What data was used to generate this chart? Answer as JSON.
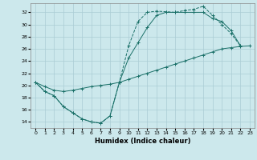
{
  "xlabel": "Humidex (Indice chaleur)",
  "bg_color": "#cce8ec",
  "grid_color": "#aaccd4",
  "line_color": "#1a7068",
  "xlim": [
    -0.5,
    23.5
  ],
  "ylim": [
    13.0,
    33.5
  ],
  "yticks": [
    14,
    16,
    18,
    20,
    22,
    24,
    26,
    28,
    30,
    32
  ],
  "xticks": [
    0,
    1,
    2,
    3,
    4,
    5,
    6,
    7,
    8,
    9,
    10,
    11,
    12,
    13,
    14,
    15,
    16,
    17,
    18,
    19,
    20,
    21,
    22,
    23
  ],
  "line1_x": [
    0,
    1,
    2,
    3,
    4,
    5,
    6,
    7,
    8,
    9,
    10,
    11,
    12,
    13,
    14,
    15,
    16,
    17,
    18,
    19,
    20,
    21,
    22
  ],
  "line1_y": [
    20.5,
    19.0,
    18.3,
    16.5,
    15.5,
    14.5,
    14.0,
    13.8,
    15.0,
    20.5,
    26.5,
    30.5,
    32.0,
    32.2,
    32.1,
    32.0,
    32.3,
    32.5,
    33.0,
    31.5,
    30.0,
    28.5,
    26.5
  ],
  "line2_x": [
    0,
    1,
    2,
    3,
    4,
    5,
    6,
    7,
    8,
    9,
    10,
    11,
    12,
    13,
    14,
    15,
    16,
    17,
    18,
    19,
    20,
    21,
    22
  ],
  "line2_y": [
    20.5,
    19.0,
    18.3,
    16.5,
    15.5,
    14.5,
    14.0,
    13.8,
    15.0,
    20.5,
    24.5,
    27.0,
    29.5,
    31.5,
    32.0,
    32.0,
    32.0,
    32.0,
    32.0,
    31.0,
    30.5,
    29.0,
    26.5
  ],
  "line3_x": [
    0,
    1,
    2,
    3,
    4,
    5,
    6,
    7,
    8,
    9,
    10,
    11,
    12,
    13,
    14,
    15,
    16,
    17,
    18,
    19,
    20,
    21,
    22,
    23
  ],
  "line3_y": [
    20.5,
    19.8,
    19.2,
    19.0,
    19.2,
    19.5,
    19.8,
    20.0,
    20.2,
    20.5,
    21.0,
    21.5,
    22.0,
    22.5,
    23.0,
    23.5,
    24.0,
    24.5,
    25.0,
    25.5,
    26.0,
    26.2,
    26.4,
    26.5
  ]
}
